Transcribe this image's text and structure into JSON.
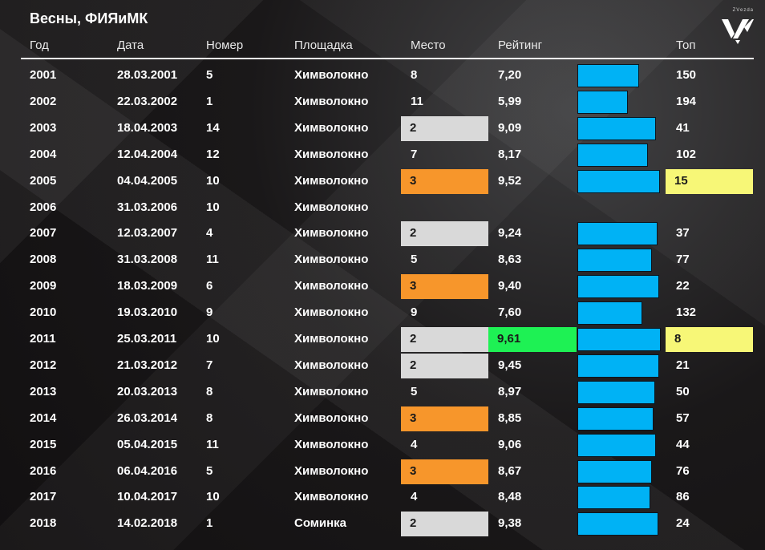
{
  "title": "Весны, ФИЯиМК",
  "header": {
    "year": "Год",
    "date": "Дата",
    "number": "Номер",
    "venue": "Площадка",
    "place": "Место",
    "rating": "Рейтинг",
    "top": "Топ"
  },
  "logo": {
    "text": "ZVezda",
    "icon": "zvezda-logo-icon"
  },
  "colors": {
    "place_2": "#d9d9d9",
    "place_3": "#f7962b",
    "best_rating": "#1ef154",
    "top_highlight": "#f7f777",
    "bar": "#00b2f5"
  },
  "chart_data": {
    "type": "table",
    "bar_column": "rating",
    "rows": [
      {
        "year": "2001",
        "date": "28.03.2001",
        "number": "5",
        "venue": "Химволокно",
        "place": "8",
        "rating": "7,20",
        "top": "150"
      },
      {
        "year": "2002",
        "date": "22.03.2002",
        "number": "1",
        "venue": "Химволокно",
        "place": "11",
        "rating": "5,99",
        "top": "194"
      },
      {
        "year": "2003",
        "date": "18.04.2003",
        "number": "14",
        "venue": "Химволокно",
        "place": "2",
        "rating": "9,09",
        "top": "41"
      },
      {
        "year": "2004",
        "date": "12.04.2004",
        "number": "12",
        "venue": "Химволокно",
        "place": "7",
        "rating": "8,17",
        "top": "102"
      },
      {
        "year": "2005",
        "date": "04.04.2005",
        "number": "10",
        "venue": "Химволокно",
        "place": "3",
        "rating": "9,52",
        "top": "15",
        "top_highlight": true
      },
      {
        "year": "2006",
        "date": "31.03.2006",
        "number": "10",
        "venue": "Химволокно",
        "place": "",
        "rating": "",
        "top": ""
      },
      {
        "year": "2007",
        "date": "12.03.2007",
        "number": "4",
        "venue": "Химволокно",
        "place": "2",
        "rating": "9,24",
        "top": "37"
      },
      {
        "year": "2008",
        "date": "31.03.2008",
        "number": "11",
        "venue": "Химволокно",
        "place": "5",
        "rating": "8,63",
        "top": "77"
      },
      {
        "year": "2009",
        "date": "18.03.2009",
        "number": "6",
        "venue": "Химволокно",
        "place": "3",
        "rating": "9,40",
        "top": "22"
      },
      {
        "year": "2010",
        "date": "19.03.2010",
        "number": "9",
        "venue": "Химволокно",
        "place": "9",
        "rating": "7,60",
        "top": "132"
      },
      {
        "year": "2011",
        "date": "25.03.2011",
        "number": "10",
        "venue": "Химволокно",
        "place": "2",
        "rating": "9,61",
        "top": "8",
        "best_rating": true,
        "top_highlight": true
      },
      {
        "year": "2012",
        "date": "21.03.2012",
        "number": "7",
        "venue": "Химволокно",
        "place": "2",
        "rating": "9,45",
        "top": "21"
      },
      {
        "year": "2013",
        "date": "20.03.2013",
        "number": "8",
        "venue": "Химволокно",
        "place": "5",
        "rating": "8,97",
        "top": "50"
      },
      {
        "year": "2014",
        "date": "26.03.2014",
        "number": "8",
        "venue": "Химволокно",
        "place": "3",
        "rating": "8,85",
        "top": "57"
      },
      {
        "year": "2015",
        "date": "05.04.2015",
        "number": "11",
        "venue": "Химволокно",
        "place": "4",
        "rating": "9,06",
        "top": "44"
      },
      {
        "year": "2016",
        "date": "06.04.2016",
        "number": "5",
        "venue": "Химволокно",
        "place": "3",
        "rating": "8,67",
        "top": "76"
      },
      {
        "year": "2017",
        "date": "10.04.2017",
        "number": "10",
        "venue": "Химволокно",
        "place": "4",
        "rating": "8,48",
        "top": "86"
      },
      {
        "year": "2018",
        "date": "14.02.2018",
        "number": "1",
        "venue": "Соминка",
        "place": "2",
        "rating": "9,38",
        "top": "24"
      }
    ]
  }
}
